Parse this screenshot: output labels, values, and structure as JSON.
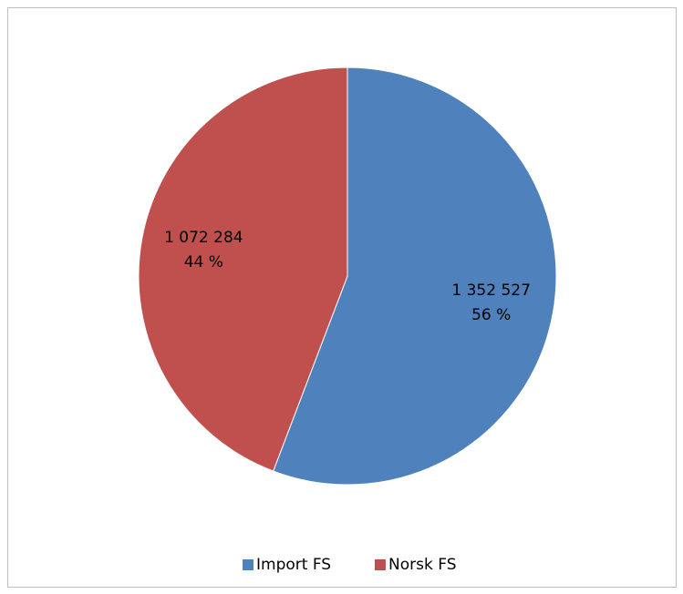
{
  "chart_data": {
    "type": "pie",
    "categories": [
      "Import FS",
      "Norsk FS"
    ],
    "values": [
      1352527,
      1072284
    ],
    "value_labels": [
      "1 352 527",
      "1 072 284"
    ],
    "percentages": [
      56,
      44
    ],
    "percentage_labels": [
      "56 %",
      "44 %"
    ],
    "colors": [
      "#4f81bd",
      "#c0504d"
    ],
    "legend": "bottom"
  }
}
